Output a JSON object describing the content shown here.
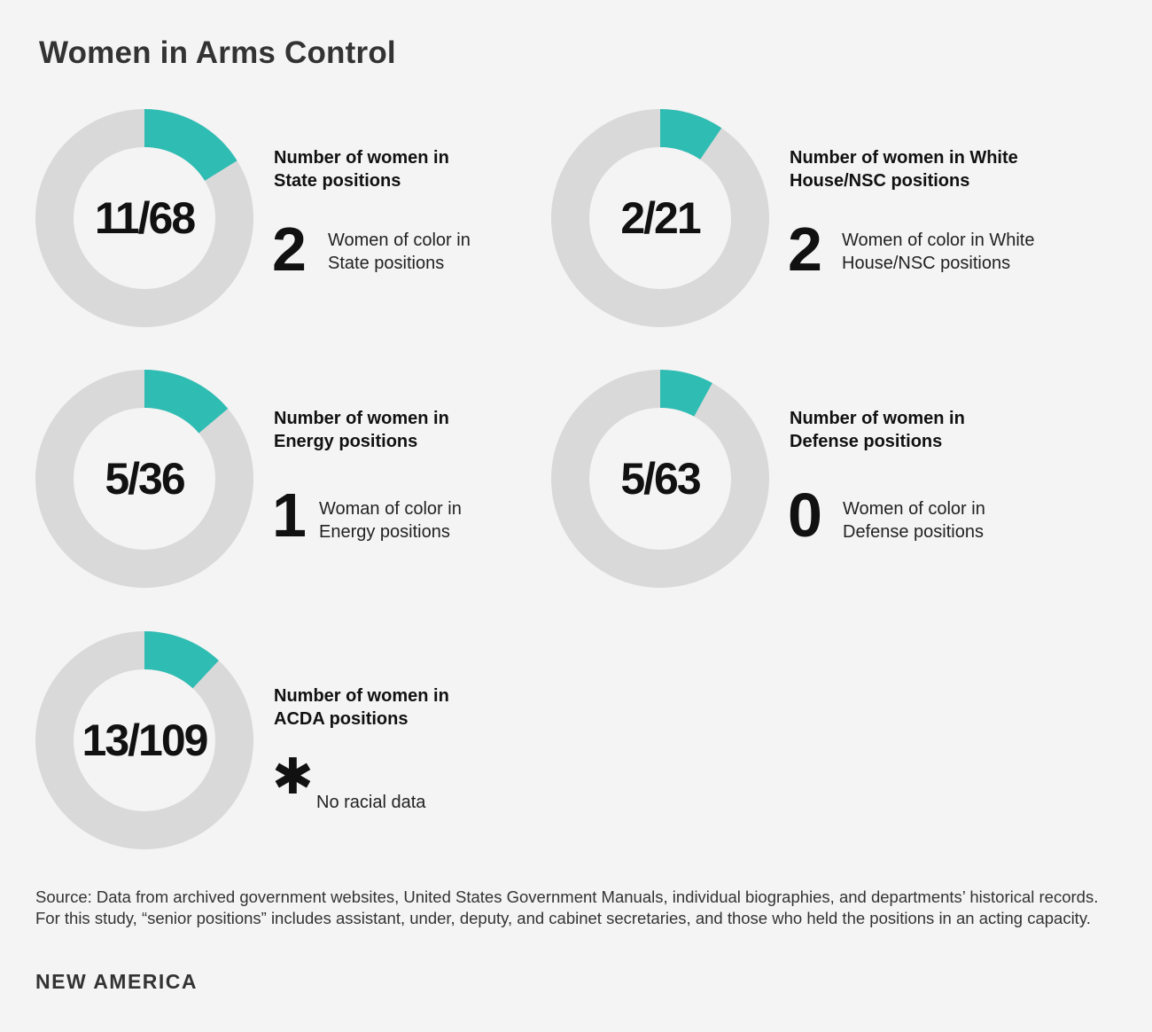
{
  "title": "Women in Arms Control",
  "colors": {
    "accent": "#2fbcb3",
    "track": "#d9d9d9",
    "background": "#f4f4f4",
    "center": "#f4f4f4"
  },
  "chart_data": {
    "type": "pie",
    "title": "Women in Arms Control",
    "series": [
      {
        "fraction_label": "11/68",
        "women": 11,
        "total": 68,
        "heading": "Number of women in State positions",
        "color_count": "2",
        "color_label": "Women of color in State positions"
      },
      {
        "fraction_label": "2/21",
        "women": 2,
        "total": 21,
        "heading": "Number of women in White House/NSC positions",
        "color_count": "2",
        "color_label": "Women of color in White House/NSC positions"
      },
      {
        "fraction_label": "5/36",
        "women": 5,
        "total": 36,
        "heading": "Number of women in Energy positions",
        "color_count": "1",
        "color_label": "Woman of color in Energy positions"
      },
      {
        "fraction_label": "5/63",
        "women": 5,
        "total": 63,
        "heading": "Number of women in Defense positions",
        "color_count": "0",
        "color_label": "Women of color in Defense positions"
      },
      {
        "fraction_label": "13/109",
        "women": 13,
        "total": 109,
        "heading": "Number of women in ACDA positions",
        "color_count": "✱",
        "color_label": "No racial data"
      }
    ]
  },
  "source": "Source: Data from archived government websites, United States Government Manuals, individual biographies, and departments’ historical records. For this study, “senior positions” includes assistant, under, deputy, and cabinet secretaries, and those who held the positions in an acting capacity.",
  "brand": "NEW AMERICA"
}
